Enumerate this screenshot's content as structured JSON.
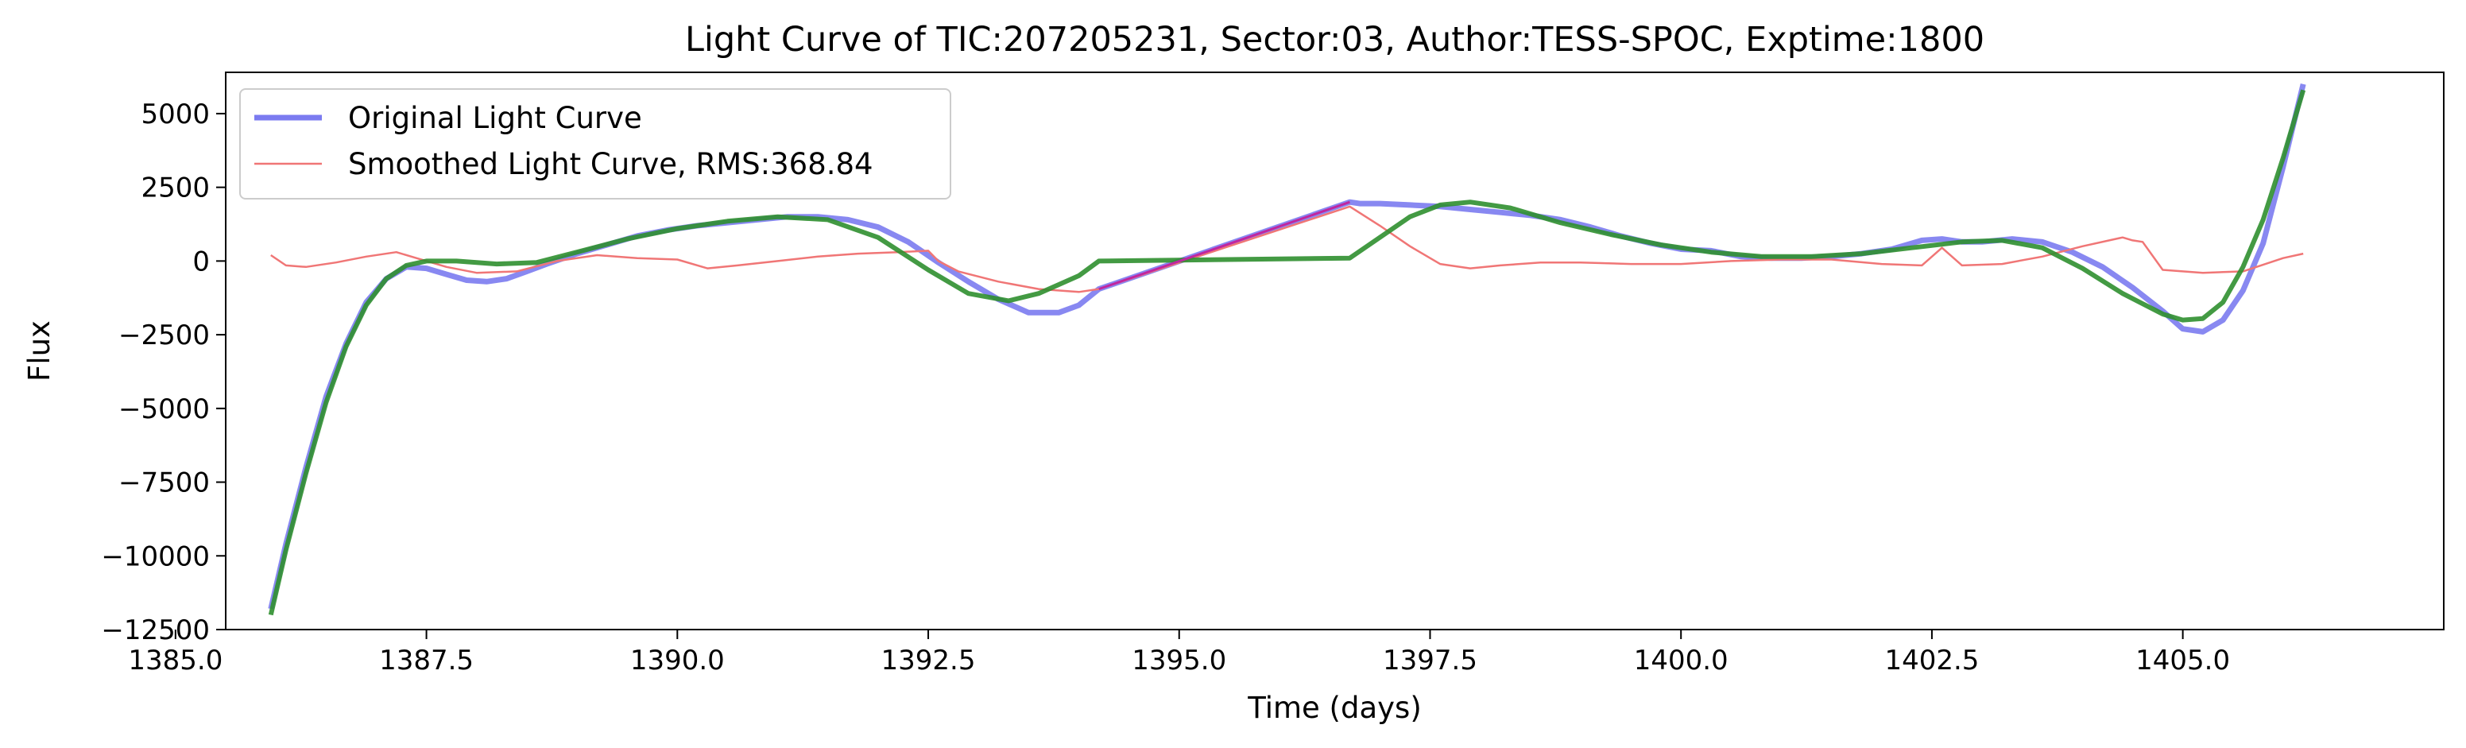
{
  "chart_data": {
    "type": "line",
    "title": "Light Curve of TIC:207205231, Sector:03, Author:TESS-SPOC, Exptime:1800",
    "xlabel": "Time (days)",
    "ylabel": "Flux",
    "xlim": [
      1385.5,
      1407.6
    ],
    "ylim": [
      -12500,
      6400
    ],
    "xticks": [
      1385.0,
      1387.5,
      1390.0,
      1392.5,
      1395.0,
      1397.5,
      1400.0,
      1402.5,
      1405.0
    ],
    "xtick_labels": [
      "1385.0",
      "1387.5",
      "1390.0",
      "1392.5",
      "1395.0",
      "1397.5",
      "1400.0",
      "1402.5",
      "1405.0"
    ],
    "yticks": [
      5000,
      2500,
      0,
      -2500,
      -5000,
      -7500,
      -10000,
      -12500
    ],
    "ytick_labels": [
      "5000",
      "2500",
      "0",
      "−2500",
      "−5000",
      "−7500",
      "−10000",
      "−12500"
    ],
    "grid": false,
    "legend_position": "top-left",
    "series": [
      {
        "name": "Original Light Curve",
        "color": "#7b7bf0",
        "x": [
          1385.95,
          1386.1,
          1386.3,
          1386.5,
          1386.7,
          1386.9,
          1387.1,
          1387.3,
          1387.5,
          1387.7,
          1387.9,
          1388.1,
          1388.3,
          1388.5,
          1388.7,
          1389.0,
          1389.3,
          1389.6,
          1389.9,
          1390.2,
          1390.5,
          1390.8,
          1391.1,
          1391.4,
          1391.7,
          1392.0,
          1392.3,
          1392.6,
          1392.9,
          1393.2,
          1393.5,
          1393.8,
          1394.0,
          1394.2,
          1396.7,
          1396.8,
          1397.0,
          1397.3,
          1397.6,
          1397.9,
          1398.2,
          1398.5,
          1398.8,
          1399.1,
          1399.4,
          1399.7,
          1400.0,
          1400.3,
          1400.6,
          1400.9,
          1401.2,
          1401.5,
          1401.8,
          1402.1,
          1402.4,
          1402.6,
          1402.8,
          1403.0,
          1403.3,
          1403.6,
          1403.9,
          1404.2,
          1404.5,
          1404.8,
          1405.0,
          1405.2,
          1405.4,
          1405.6,
          1405.8,
          1406.0,
          1406.2
        ],
        "y": [
          -11800,
          -9600,
          -7000,
          -4600,
          -2800,
          -1400,
          -600,
          -200,
          -250,
          -450,
          -650,
          -700,
          -600,
          -350,
          -100,
          250,
          550,
          850,
          1050,
          1200,
          1300,
          1400,
          1500,
          1500,
          1400,
          1150,
          650,
          -50,
          -700,
          -1300,
          -1750,
          -1750,
          -1500,
          -950,
          2000,
          1950,
          1950,
          1900,
          1850,
          1750,
          1650,
          1550,
          1400,
          1150,
          850,
          600,
          400,
          350,
          150,
          100,
          100,
          150,
          250,
          400,
          700,
          750,
          650,
          650,
          750,
          650,
          300,
          -200,
          -900,
          -1700,
          -2300,
          -2400,
          -2000,
          -1000,
          600,
          3200,
          6000
        ]
      },
      {
        "name": "Smoothed Light Curve, RMS:368.84",
        "color": "#f07676",
        "x": [
          1385.95,
          1386.1,
          1386.3,
          1386.6,
          1386.9,
          1387.2,
          1387.4,
          1387.7,
          1388.0,
          1388.4,
          1388.8,
          1389.2,
          1389.6,
          1390.0,
          1390.3,
          1390.6,
          1391.0,
          1391.4,
          1391.8,
          1392.2,
          1392.5,
          1392.6,
          1392.8,
          1393.2,
          1393.6,
          1394.0,
          1394.2,
          1396.7,
          1397.0,
          1397.3,
          1397.6,
          1397.9,
          1398.2,
          1398.6,
          1399.0,
          1399.5,
          1400.0,
          1400.5,
          1401.0,
          1401.5,
          1402.0,
          1402.4,
          1402.6,
          1402.8,
          1403.2,
          1403.6,
          1404.0,
          1404.4,
          1404.5,
          1404.6,
          1404.8,
          1405.2,
          1405.6,
          1406.0,
          1406.2
        ],
        "y": [
          200,
          -150,
          -200,
          -50,
          150,
          300,
          100,
          -200,
          -400,
          -350,
          0,
          200,
          100,
          50,
          -250,
          -150,
          0,
          150,
          250,
          300,
          350,
          0,
          -350,
          -700,
          -950,
          -1050,
          -950,
          1850,
          1200,
          500,
          -100,
          -250,
          -150,
          -50,
          -50,
          -100,
          -100,
          0,
          50,
          50,
          -100,
          -150,
          450,
          -150,
          -100,
          150,
          500,
          800,
          700,
          650,
          -300,
          -400,
          -350,
          100,
          250
        ]
      },
      {
        "name": "",
        "color": "#2f8f2f",
        "x": [
          1385.95,
          1386.1,
          1386.3,
          1386.5,
          1386.7,
          1386.9,
          1387.1,
          1387.3,
          1387.5,
          1387.8,
          1388.2,
          1388.6,
          1389.0,
          1389.5,
          1390.0,
          1390.5,
          1391.0,
          1391.5,
          1392.0,
          1392.5,
          1392.9,
          1393.3,
          1393.6,
          1394.0,
          1394.2,
          1396.7,
          1397.0,
          1397.3,
          1397.6,
          1397.9,
          1398.3,
          1398.8,
          1399.3,
          1399.8,
          1400.3,
          1400.8,
          1401.3,
          1401.8,
          1402.3,
          1402.8,
          1403.2,
          1403.6,
          1404.0,
          1404.4,
          1404.8,
          1405.0,
          1405.2,
          1405.4,
          1405.6,
          1405.8,
          1406.0,
          1406.2
        ],
        "y": [
          -12000,
          -9800,
          -7200,
          -4800,
          -2900,
          -1500,
          -600,
          -150,
          0,
          0,
          -100,
          -50,
          300,
          750,
          1100,
          1350,
          1500,
          1400,
          800,
          -300,
          -1100,
          -1350,
          -1100,
          -500,
          0,
          100,
          800,
          1500,
          1900,
          2000,
          1800,
          1300,
          900,
          550,
          300,
          150,
          150,
          250,
          450,
          650,
          700,
          450,
          -250,
          -1100,
          -1800,
          -2000,
          -1950,
          -1400,
          -200,
          1400,
          3500,
          5800
        ]
      }
    ]
  },
  "colors": {
    "original": "#7b7bf0",
    "smoothed": "#f07676",
    "fit": "#2f8f2f",
    "gap_connector": "#c026a0"
  }
}
